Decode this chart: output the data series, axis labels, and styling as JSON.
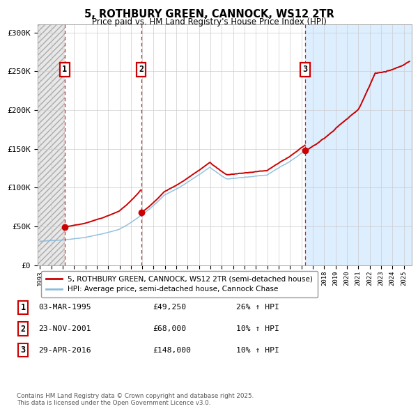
{
  "title_line1": "5, ROTHBURY GREEN, CANNOCK, WS12 2TR",
  "title_line2": "Price paid vs. HM Land Registry's House Price Index (HPI)",
  "ylim": [
    0,
    310000
  ],
  "xlim_start": 1992.8,
  "xlim_end": 2025.7,
  "yticks": [
    0,
    50000,
    100000,
    150000,
    200000,
    250000,
    300000
  ],
  "ytick_labels": [
    "£0",
    "£50K",
    "£100K",
    "£150K",
    "£200K",
    "£250K",
    "£300K"
  ],
  "xticks": [
    1993,
    1994,
    1995,
    1996,
    1997,
    1998,
    1999,
    2000,
    2001,
    2002,
    2003,
    2004,
    2005,
    2006,
    2007,
    2008,
    2009,
    2010,
    2011,
    2012,
    2013,
    2014,
    2015,
    2016,
    2017,
    2018,
    2019,
    2020,
    2021,
    2022,
    2023,
    2024,
    2025
  ],
  "sale1_x": 1995.17,
  "sale1_y": 49250,
  "sale2_x": 2001.9,
  "sale2_y": 68000,
  "sale3_x": 2016.33,
  "sale3_y": 148000,
  "sale_color": "#cc0000",
  "hpi_color": "#88bbdd",
  "vline_color": "#cc0000",
  "bg_main": "#ffffff",
  "bg_hatch": "#e8e8e8",
  "bg_blue": "#ddeeff",
  "grid_color": "#cccccc",
  "legend_label1": "5, ROTHBURY GREEN, CANNOCK, WS12 2TR (semi-detached house)",
  "legend_label2": "HPI: Average price, semi-detached house, Cannock Chase",
  "table_entries": [
    {
      "num": "1",
      "date": "03-MAR-1995",
      "price": "£49,250",
      "hpi": "26% ↑ HPI"
    },
    {
      "num": "2",
      "date": "23-NOV-2001",
      "price": "£68,000",
      "hpi": "10% ↑ HPI"
    },
    {
      "num": "3",
      "date": "29-APR-2016",
      "price": "£148,000",
      "hpi": "10% ↑ HPI"
    }
  ],
  "footnote": "Contains HM Land Registry data © Crown copyright and database right 2025.\nThis data is licensed under the Open Government Licence v3.0."
}
